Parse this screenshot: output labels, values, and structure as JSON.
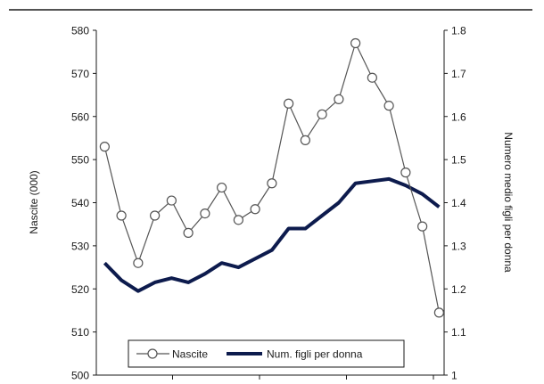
{
  "chart_data": {
    "type": "line",
    "title": "",
    "x": [
      1,
      2,
      3,
      4,
      5,
      6,
      7,
      8,
      9,
      10,
      11,
      12,
      13,
      14,
      15,
      16,
      17,
      18,
      19,
      20,
      21
    ],
    "x_tick_labels": [],
    "y_left": {
      "label": "Nascite (000)",
      "lim": [
        500,
        580
      ],
      "ticks": [
        500,
        510,
        520,
        530,
        540,
        550,
        560,
        570,
        580
      ]
    },
    "y_right": {
      "label": "Numero medio figli per donna",
      "lim": [
        1.0,
        1.8
      ],
      "ticks": [
        "1",
        "1.1",
        "1.2",
        "1.3",
        "1.4",
        "1.5",
        "1.6",
        "1.7",
        "1.8"
      ]
    },
    "grid": false,
    "legend_position": "bottom-left",
    "series": [
      {
        "name": "Nascite",
        "axis": "left",
        "color": "#555555",
        "marker": "open-circle",
        "values": [
          553,
          537,
          526,
          537,
          540.5,
          533,
          537.5,
          543.5,
          536,
          538.5,
          544.5,
          563,
          554.5,
          560.5,
          564,
          577,
          569,
          562.5,
          547,
          534.5,
          514.5
        ]
      },
      {
        "name": "Num. figli per donna",
        "axis": "right",
        "color": "#0d1b4d",
        "marker": "none",
        "values": [
          1.26,
          1.22,
          1.195,
          1.215,
          1.225,
          1.215,
          1.235,
          1.26,
          1.25,
          1.27,
          1.29,
          1.34,
          1.34,
          1.37,
          1.4,
          1.445,
          1.45,
          1.455,
          1.44,
          1.42,
          1.39
        ]
      }
    ]
  }
}
